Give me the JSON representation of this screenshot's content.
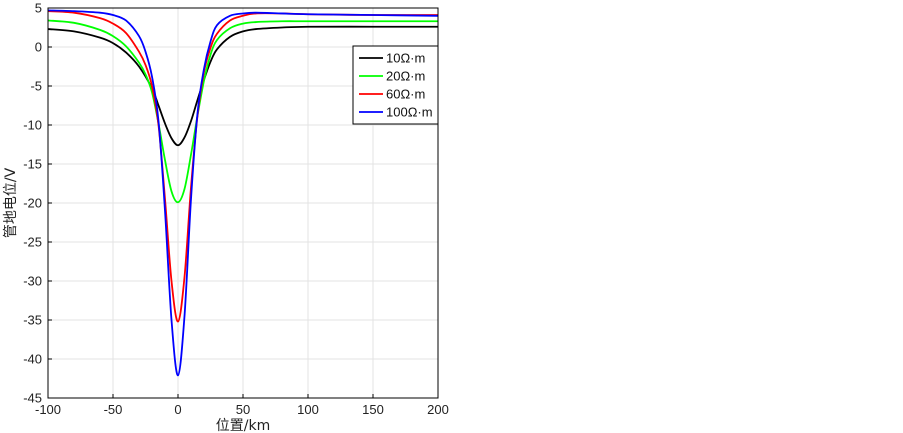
{
  "chart_data": {
    "type": "line",
    "xlabel": "位置/km",
    "ylabel": "管地电位/V",
    "xlim": [
      -100,
      200
    ],
    "ylim": [
      -45,
      5
    ],
    "xticks": [
      -100,
      -50,
      0,
      50,
      100,
      150,
      200
    ],
    "yticks": [
      5,
      0,
      -5,
      -10,
      -15,
      -20,
      -25,
      -30,
      -35,
      -40,
      -45
    ],
    "grid": true,
    "legend_position": "top-right",
    "series": [
      {
        "name": "10Ω·m",
        "color": "#000000",
        "points": [
          [
            -100,
            2.3
          ],
          [
            -80,
            2.0
          ],
          [
            -60,
            1.2
          ],
          [
            -50,
            0.5
          ],
          [
            -40,
            -0.7
          ],
          [
            -30,
            -2.5
          ],
          [
            -20,
            -5.3
          ],
          [
            -15,
            -7.5
          ],
          [
            -10,
            -9.8
          ],
          [
            -5,
            -11.7
          ],
          [
            0,
            -12.6
          ],
          [
            5,
            -11.6
          ],
          [
            10,
            -9.5
          ],
          [
            15,
            -6.8
          ],
          [
            20,
            -4.2
          ],
          [
            25,
            -1.9
          ],
          [
            30,
            -0.3
          ],
          [
            40,
            1.3
          ],
          [
            50,
            2.0
          ],
          [
            60,
            2.3
          ],
          [
            80,
            2.5
          ],
          [
            100,
            2.6
          ],
          [
            150,
            2.6
          ],
          [
            200,
            2.6
          ]
        ]
      },
      {
        "name": "20Ω·m",
        "color": "#00ff00",
        "points": [
          [
            -100,
            3.4
          ],
          [
            -80,
            3.1
          ],
          [
            -60,
            2.2
          ],
          [
            -50,
            1.4
          ],
          [
            -40,
            0.1
          ],
          [
            -30,
            -2.0
          ],
          [
            -25,
            -3.5
          ],
          [
            -20,
            -5.8
          ],
          [
            -15,
            -9.8
          ],
          [
            -10,
            -14.5
          ],
          [
            -5,
            -18.5
          ],
          [
            0,
            -19.9
          ],
          [
            5,
            -18.2
          ],
          [
            10,
            -13.8
          ],
          [
            15,
            -8.8
          ],
          [
            20,
            -4.3
          ],
          [
            25,
            -1.0
          ],
          [
            30,
            0.9
          ],
          [
            40,
            2.4
          ],
          [
            50,
            3.0
          ],
          [
            60,
            3.2
          ],
          [
            80,
            3.3
          ],
          [
            100,
            3.3
          ],
          [
            150,
            3.3
          ],
          [
            200,
            3.3
          ]
        ]
      },
      {
        "name": "60Ω·m",
        "color": "#ff0000",
        "points": [
          [
            -100,
            4.6
          ],
          [
            -80,
            4.4
          ],
          [
            -60,
            3.7
          ],
          [
            -50,
            3.0
          ],
          [
            -40,
            1.8
          ],
          [
            -30,
            -0.6
          ],
          [
            -25,
            -2.3
          ],
          [
            -20,
            -5.0
          ],
          [
            -15,
            -10.0
          ],
          [
            -10,
            -19.5
          ],
          [
            -5,
            -30.0
          ],
          [
            0,
            -35.2
          ],
          [
            5,
            -29.5
          ],
          [
            10,
            -18.0
          ],
          [
            15,
            -8.8
          ],
          [
            20,
            -3.2
          ],
          [
            25,
            -0.1
          ],
          [
            30,
            1.7
          ],
          [
            40,
            3.4
          ],
          [
            50,
            4.0
          ],
          [
            60,
            4.3
          ],
          [
            80,
            4.3
          ],
          [
            100,
            4.2
          ],
          [
            150,
            4.1
          ],
          [
            200,
            4.1
          ]
        ]
      },
      {
        "name": "100Ω·m",
        "color": "#0000ff",
        "points": [
          [
            -100,
            4.7
          ],
          [
            -80,
            4.6
          ],
          [
            -60,
            4.4
          ],
          [
            -50,
            4.1
          ],
          [
            -40,
            3.4
          ],
          [
            -30,
            1.4
          ],
          [
            -25,
            -0.6
          ],
          [
            -20,
            -3.8
          ],
          [
            -15,
            -9.5
          ],
          [
            -10,
            -21.0
          ],
          [
            -5,
            -35.0
          ],
          [
            0,
            -42.1
          ],
          [
            5,
            -34.5
          ],
          [
            10,
            -19.5
          ],
          [
            15,
            -8.5
          ],
          [
            20,
            -2.8
          ],
          [
            25,
            0.7
          ],
          [
            30,
            2.8
          ],
          [
            40,
            4.0
          ],
          [
            50,
            4.3
          ],
          [
            60,
            4.4
          ],
          [
            80,
            4.3
          ],
          [
            100,
            4.2
          ],
          [
            150,
            4.1
          ],
          [
            200,
            4.0
          ]
        ]
      }
    ]
  }
}
